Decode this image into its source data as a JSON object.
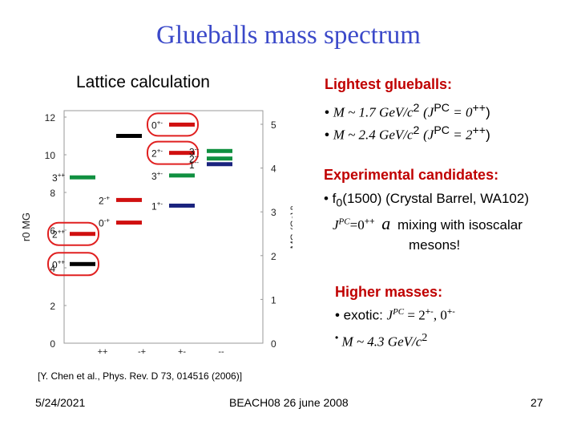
{
  "slide": {
    "title": "Glueballs mass spectrum",
    "left_heading": "Lattice calculation",
    "reference": "[Y. Chen et al., Phys. Rev. D 73, 014516 (2006)]",
    "footer_date": "5/24/2021",
    "footer_center": "BEACH08 26 june 2008",
    "page_number": "27"
  },
  "right": {
    "lightest_heading": "Lightest glueballs:",
    "lightest_items": [
      {
        "bullet": "•",
        "mass": "M ~ 1.7 GeV/c",
        "exp": "2",
        "jpc": "(J",
        "jpc_sup": "PC",
        "jpc_val": " = 0",
        "jpc_val_sup": "++",
        "close": ")"
      },
      {
        "bullet": "•",
        "mass": "M ~ 2.4 GeV/c",
        "exp": "2",
        "jpc": "(J",
        "jpc_sup": "PC",
        "jpc_val": " = 2",
        "jpc_val_sup": "++",
        "close": ")"
      }
    ],
    "experimental_heading": "Experimental candidates:",
    "exp_line1_pre": "• f",
    "exp_line1_sub": "0",
    "exp_line1_post": "(1500) (Crystal Barrel, WA102)",
    "exp_line2_j": "J",
    "exp_line2_pc": "PC",
    "exp_line2_eq": "=0",
    "exp_line2_pp": "++",
    "exp_line2_arrow": "a",
    "exp_line2_post": " mixing with isoscalar",
    "exp_line3": "mesons!",
    "higher_heading": "Higher masses:",
    "higher_line1_pre": "• exotic: ",
    "higher_line1_j": "J",
    "higher_line1_pc": "PC",
    "higher_line1_eq": " = 2",
    "higher_line1_s1": "+-",
    "higher_line1_mid": ", 0",
    "higher_line1_s2": "+-",
    "higher_line2_bullet": "•",
    "higher_line2": " M ~ 4.3 GeV/c",
    "higher_line2_sup": "2"
  },
  "chart_data": {
    "type": "scatter",
    "title": "",
    "ylabel_left": "r0 MG",
    "ylabel_right": "MG (GeV)",
    "ylim_left": [
      0,
      12
    ],
    "ylim_right": [
      0,
      5
    ],
    "left_ticks": [
      "0",
      "2",
      "4",
      "6",
      "8",
      "10",
      "12"
    ],
    "right_ticks": [
      "0",
      "1",
      "2",
      "3",
      "4",
      "5"
    ],
    "x_categories": [
      "++",
      "-+",
      "+-",
      "--"
    ],
    "colors": {
      "PC++": "#000000",
      "PC-+": "#d01010",
      "PC+-": "#109040",
      "PC--": "#1a237e"
    },
    "levels": [
      {
        "label": "0++",
        "category": "++",
        "value": 4.2,
        "color": "#000000",
        "circled": true
      },
      {
        "label": "2++",
        "category": "++",
        "value": 5.8,
        "color": "#d01010",
        "circled": true
      },
      {
        "label": "3++",
        "category": "++",
        "value": 8.8,
        "color": "#109040",
        "circled": false
      },
      {
        "label": "0-+",
        "category": "-+",
        "value": 6.4,
        "color": "#d01010",
        "circled": false
      },
      {
        "label": "2-+",
        "category": "-+",
        "value": 7.6,
        "color": "#d01010",
        "circled": false
      },
      {
        "label": "0*-+",
        "category": "-+",
        "value": 11.0,
        "color": "#000000",
        "circled": false
      },
      {
        "label": "0+-",
        "category": "+-",
        "value": 11.6,
        "color": "#d01010",
        "circled": true
      },
      {
        "label": "2+-",
        "category": "+-",
        "value": 10.1,
        "color": "#d01010",
        "circled": true
      },
      {
        "label": "1+-",
        "category": "+-",
        "value": 7.3,
        "color": "#1a237e",
        "circled": false
      },
      {
        "label": "3+-",
        "category": "+-",
        "value": 8.9,
        "color": "#109040",
        "circled": false
      },
      {
        "label": "3--",
        "category": "--",
        "value": 10.2,
        "color": "#109040",
        "circled": false
      },
      {
        "label": "2--",
        "category": "--",
        "value": 9.8,
        "color": "#109040",
        "circled": false
      },
      {
        "label": "1--",
        "category": "--",
        "value": 9.5,
        "color": "#1a237e",
        "circled": false
      }
    ],
    "level_labels": [
      {
        "text": "0",
        "sup": "++",
        "level": 0
      },
      {
        "text": "2",
        "sup": "++",
        "level": 1
      },
      {
        "text": "3",
        "sup": "++",
        "level": 2
      },
      {
        "text": "0",
        "sup": "-+",
        "level": 3
      },
      {
        "text": "2",
        "sup": "-+",
        "level": 4
      },
      {
        "text": "0",
        "sup": "+-",
        "level": 6
      },
      {
        "text": "2",
        "sup": "+-",
        "level": 7
      },
      {
        "text": "1",
        "sup": "+-",
        "level": 8
      },
      {
        "text": "3",
        "sup": "+-",
        "level": 9
      },
      {
        "text": "3",
        "sup": "--",
        "level": 10
      },
      {
        "text": "2",
        "sup": "--",
        "level": 11
      },
      {
        "text": "1",
        "sup": "--",
        "level": 12
      }
    ]
  }
}
